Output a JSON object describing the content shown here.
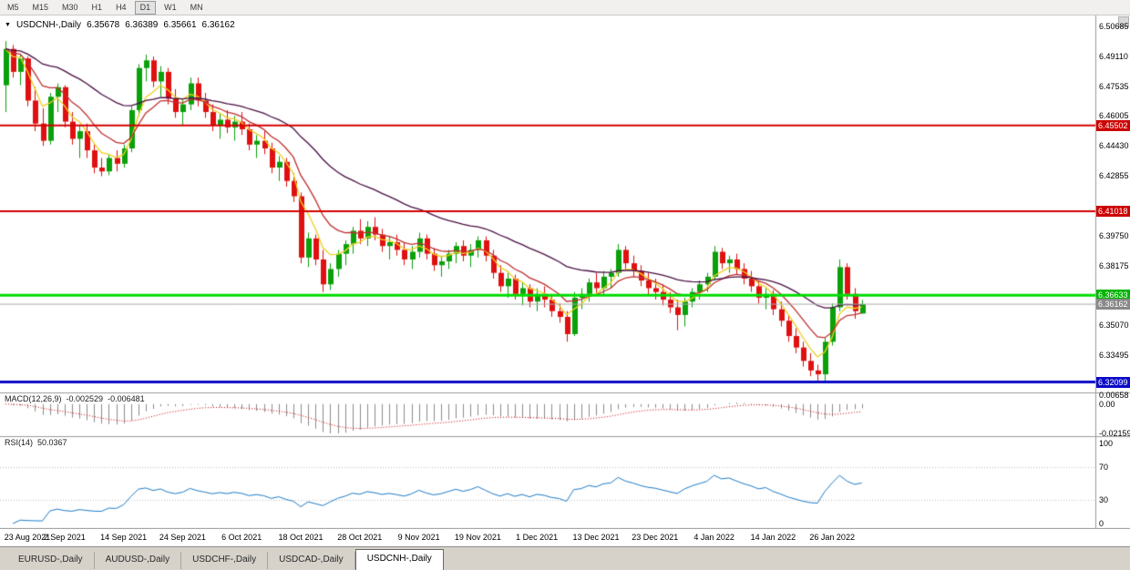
{
  "toolbar": {
    "timeframes": [
      {
        "label": "M5",
        "active": false
      },
      {
        "label": "M15",
        "active": false
      },
      {
        "label": "M30",
        "active": false
      },
      {
        "label": "H1",
        "active": false
      },
      {
        "label": "H4",
        "active": false
      },
      {
        "label": "D1",
        "active": true
      },
      {
        "label": "W1",
        "active": false
      },
      {
        "label": "MN",
        "active": false
      }
    ]
  },
  "chart": {
    "header": {
      "dropdown_icon": "▼",
      "symbol": "USDCNH-,Daily",
      "open": "6.35678",
      "high": "6.36389",
      "low": "6.35661",
      "close": "6.36162"
    },
    "price_axis": {
      "labels": [
        "6.50685",
        "6.49110",
        "6.47535",
        "6.46005",
        "6.44430",
        "6.42855",
        "6.39750",
        "6.38175",
        "6.35070",
        "6.33495"
      ]
    }
  },
  "chart_data": {
    "type": "candlestick",
    "symbol": "USDCNH",
    "timeframe": "Daily",
    "price_range": {
      "min": 6.316,
      "max": 6.5115
    },
    "x_ticks": [
      {
        "index": 0,
        "label": "23 Aug 2021"
      },
      {
        "index": 8,
        "label": "2 Sep 2021"
      },
      {
        "index": 16,
        "label": "14 Sep 2021"
      },
      {
        "index": 24,
        "label": "24 Sep 2021"
      },
      {
        "index": 32,
        "label": "6 Oct 2021"
      },
      {
        "index": 40,
        "label": "18 Oct 2021"
      },
      {
        "index": 48,
        "label": "28 Oct 2021"
      },
      {
        "index": 56,
        "label": "9 Nov 2021"
      },
      {
        "index": 64,
        "label": "19 Nov 2021"
      },
      {
        "index": 72,
        "label": "1 Dec 2021"
      },
      {
        "index": 80,
        "label": "13 Dec 2021"
      },
      {
        "index": 88,
        "label": "23 Dec 2021"
      },
      {
        "index": 96,
        "label": "4 Jan 2022"
      },
      {
        "index": 104,
        "label": "14 Jan 2022"
      },
      {
        "index": 112,
        "label": "26 Jan 2022"
      }
    ],
    "candles": [
      [
        6.476,
        6.499,
        6.462,
        6.495
      ],
      [
        6.495,
        6.497,
        6.48,
        6.483
      ],
      [
        6.483,
        6.492,
        6.476,
        6.49
      ],
      [
        6.49,
        6.491,
        6.465,
        6.468
      ],
      [
        6.468,
        6.475,
        6.452,
        6.456
      ],
      [
        6.456,
        6.464,
        6.4443,
        6.447
      ],
      [
        6.447,
        6.472,
        6.445,
        6.47
      ],
      [
        6.47,
        6.477,
        6.462,
        6.475
      ],
      [
        6.475,
        6.476,
        6.454,
        6.457
      ],
      [
        6.457,
        6.462,
        6.445,
        6.448
      ],
      [
        6.448,
        6.455,
        6.438,
        6.452
      ],
      [
        6.452,
        6.456,
        6.438,
        6.442
      ],
      [
        6.442,
        6.445,
        6.43,
        6.433
      ],
      [
        6.433,
        6.438,
        6.4285,
        6.431
      ],
      [
        6.431,
        6.44,
        6.429,
        6.438
      ],
      [
        6.438,
        6.442,
        6.431,
        6.435
      ],
      [
        6.435,
        6.445,
        6.433,
        6.443
      ],
      [
        6.443,
        6.465,
        6.441,
        6.463
      ],
      [
        6.463,
        6.487,
        6.46,
        6.485
      ],
      [
        6.485,
        6.492,
        6.478,
        6.489
      ],
      [
        6.489,
        6.491,
        6.475,
        6.478
      ],
      [
        6.478,
        6.486,
        6.47,
        6.483
      ],
      [
        6.483,
        6.485,
        6.466,
        6.469
      ],
      [
        6.469,
        6.474,
        6.459,
        6.462
      ],
      [
        6.462,
        6.469,
        6.455,
        6.466
      ],
      [
        6.466,
        6.48,
        6.463,
        6.477
      ],
      [
        6.477,
        6.48,
        6.465,
        6.468
      ],
      [
        6.468,
        6.472,
        6.459,
        6.462
      ],
      [
        6.462,
        6.466,
        6.452,
        6.455
      ],
      [
        6.455,
        6.461,
        6.448,
        6.458
      ],
      [
        6.458,
        6.463,
        6.451,
        6.454
      ],
      [
        6.454,
        6.46,
        6.447,
        6.457
      ],
      [
        6.457,
        6.462,
        6.45,
        6.453
      ],
      [
        6.453,
        6.456,
        6.442,
        6.445
      ],
      [
        6.445,
        6.45,
        6.438,
        6.447
      ],
      [
        6.447,
        6.452,
        6.44,
        6.443
      ],
      [
        6.443,
        6.446,
        6.43,
        6.433
      ],
      [
        6.433,
        6.439,
        6.426,
        6.436
      ],
      [
        6.436,
        6.438,
        6.423,
        6.426
      ],
      [
        6.426,
        6.43,
        6.415,
        6.418
      ],
      [
        6.418,
        6.42,
        6.383,
        6.386
      ],
      [
        6.386,
        6.399,
        6.381,
        6.396
      ],
      [
        6.396,
        6.398,
        6.382,
        6.385
      ],
      [
        6.385,
        6.39,
        6.368,
        6.372
      ],
      [
        6.372,
        6.383,
        6.369,
        6.38
      ],
      [
        6.38,
        6.39,
        6.376,
        6.388
      ],
      [
        6.388,
        6.395,
        6.382,
        6.393
      ],
      [
        6.393,
        6.402,
        6.388,
        6.4
      ],
      [
        6.4,
        6.406,
        6.393,
        6.396
      ],
      [
        6.396,
        6.405,
        6.392,
        6.402
      ],
      [
        6.402,
        6.407,
        6.395,
        6.398
      ],
      [
        6.398,
        6.401,
        6.389,
        6.392
      ],
      [
        6.392,
        6.397,
        6.385,
        6.394
      ],
      [
        6.394,
        6.398,
        6.387,
        6.39
      ],
      [
        6.39,
        6.394,
        6.382,
        6.385
      ],
      [
        6.385,
        6.392,
        6.38,
        6.389
      ],
      [
        6.389,
        6.399,
        6.386,
        6.396
      ],
      [
        6.396,
        6.398,
        6.385,
        6.388
      ],
      [
        6.388,
        6.391,
        6.379,
        6.382
      ],
      [
        6.382,
        6.387,
        6.376,
        6.384
      ],
      [
        6.384,
        6.39,
        6.38,
        6.388
      ],
      [
        6.388,
        6.394,
        6.383,
        6.392
      ],
      [
        6.392,
        6.395,
        6.384,
        6.387
      ],
      [
        6.387,
        6.393,
        6.381,
        6.39
      ],
      [
        6.39,
        6.397,
        6.386,
        6.395
      ],
      [
        6.395,
        6.397,
        6.384,
        6.387
      ],
      [
        6.387,
        6.39,
        6.375,
        6.378
      ],
      [
        6.378,
        6.382,
        6.368,
        6.371
      ],
      [
        6.371,
        6.378,
        6.365,
        6.375
      ],
      [
        6.375,
        6.377,
        6.364,
        6.367
      ],
      [
        6.367,
        6.373,
        6.361,
        6.37
      ],
      [
        6.37,
        6.372,
        6.36,
        6.363
      ],
      [
        6.363,
        6.37,
        6.358,
        6.367
      ],
      [
        6.367,
        6.371,
        6.36,
        6.364
      ],
      [
        6.364,
        6.367,
        6.355,
        6.358
      ],
      [
        6.358,
        6.362,
        6.352,
        6.355
      ],
      [
        6.355,
        6.358,
        6.342,
        6.346
      ],
      [
        6.346,
        6.368,
        6.345,
        6.365
      ],
      [
        6.365,
        6.37,
        6.359,
        6.367
      ],
      [
        6.367,
        6.375,
        6.363,
        6.373
      ],
      [
        6.373,
        6.378,
        6.367,
        6.37
      ],
      [
        6.37,
        6.379,
        6.366,
        6.376
      ],
      [
        6.376,
        6.38,
        6.37,
        6.378
      ],
      [
        6.378,
        6.393,
        6.376,
        6.39
      ],
      [
        6.39,
        6.392,
        6.38,
        6.383
      ],
      [
        6.383,
        6.387,
        6.376,
        6.379
      ],
      [
        6.379,
        6.382,
        6.371,
        6.374
      ],
      [
        6.374,
        6.378,
        6.366,
        6.37
      ],
      [
        6.37,
        6.375,
        6.364,
        6.368
      ],
      [
        6.368,
        6.372,
        6.361,
        6.364
      ],
      [
        6.364,
        6.368,
        6.357,
        6.36
      ],
      [
        6.36,
        6.364,
        6.348,
        6.356
      ],
      [
        6.356,
        6.365,
        6.35,
        6.363
      ],
      [
        6.363,
        6.37,
        6.36,
        6.368
      ],
      [
        6.368,
        6.374,
        6.364,
        6.372
      ],
      [
        6.372,
        6.378,
        6.368,
        6.376
      ],
      [
        6.376,
        6.392,
        6.374,
        6.389
      ],
      [
        6.389,
        6.391,
        6.38,
        6.383
      ],
      [
        6.383,
        6.387,
        6.378,
        6.385
      ],
      [
        6.385,
        6.388,
        6.377,
        6.38
      ],
      [
        6.38,
        6.383,
        6.372,
        6.375
      ],
      [
        6.375,
        6.379,
        6.368,
        6.371
      ],
      [
        6.371,
        6.374,
        6.362,
        6.365
      ],
      [
        6.365,
        6.37,
        6.359,
        6.367
      ],
      [
        6.367,
        6.369,
        6.356,
        6.359
      ],
      [
        6.359,
        6.363,
        6.35,
        6.353
      ],
      [
        6.353,
        6.356,
        6.342,
        6.345
      ],
      [
        6.345,
        6.349,
        6.336,
        6.339
      ],
      [
        6.339,
        6.342,
        6.329,
        6.332
      ],
      [
        6.332,
        6.336,
        6.324,
        6.327
      ],
      [
        6.327,
        6.33,
        6.321,
        6.325
      ],
      [
        6.325,
        6.344,
        6.3215,
        6.342
      ],
      [
        6.342,
        6.362,
        6.34,
        6.36
      ],
      [
        6.36,
        6.385,
        6.358,
        6.381
      ],
      [
        6.381,
        6.383,
        6.364,
        6.367
      ],
      [
        6.367,
        6.37,
        6.354,
        6.358
      ],
      [
        6.35678,
        6.36389,
        6.35661,
        6.36162
      ]
    ],
    "moving_averages": [
      {
        "period": 5,
        "color": "#efd020",
        "name": "ma-fast-yellow"
      },
      {
        "period": 10,
        "color": "#c03030",
        "name": "ma-mid-red"
      },
      {
        "period": 30,
        "color": "#4a1045",
        "name": "ma-slow-purple"
      }
    ],
    "levels": [
      {
        "price": 6.45502,
        "text": "6.45502",
        "line_color": "#d40000",
        "line_width": 2,
        "badge_color": "#cc0000",
        "name": "resistance-line-upper"
      },
      {
        "price": 6.41018,
        "text": "6.41018",
        "line_color": "#d40000",
        "line_width": 2,
        "badge_color": "#cc0000",
        "name": "resistance-line-lower"
      },
      {
        "price": 6.36633,
        "text": "6.36633",
        "line_color": "#00dc00",
        "line_width": 3,
        "badge_color": "#00b400",
        "name": "support-line-green"
      },
      {
        "price": 6.36162,
        "text": "6.36162",
        "line_color": "#aaaaaa",
        "line_width": 1,
        "badge_color": "#888888",
        "name": "current-price-line"
      },
      {
        "price": 6.32099,
        "text": "6.32099",
        "line_color": "#0a0ac8",
        "line_width": 3,
        "badge_color": "#0a0ac8",
        "name": "support-line-blue"
      }
    ],
    "indicators": {
      "macd": {
        "label": "MACD(12,26,9)",
        "value_main": "-0.002529",
        "value_signal": "-0.006481",
        "fast": 12,
        "slow": 26,
        "signal": 9,
        "scale_max": 0.00658,
        "scale_min": -0.02159,
        "axis_labels": [
          "0.00658",
          "0.00",
          "-0.02159"
        ]
      },
      "rsi": {
        "label": "RSI(14)",
        "value": "50.0367",
        "period": 14,
        "axis_labels": [
          "100",
          "70",
          "30",
          "0"
        ],
        "levels": [
          70,
          30
        ]
      }
    }
  },
  "tabs": [
    {
      "label": "EURUSD-,Daily",
      "active": false
    },
    {
      "label": "AUDUSD-,Daily",
      "active": false
    },
    {
      "label": "USDCHF-,Daily",
      "active": false
    },
    {
      "label": "USDCAD-,Daily",
      "active": false
    },
    {
      "label": "USDCNH-,Daily",
      "active": true
    }
  ],
  "colors": {
    "bull": "#0aa00a",
    "bear": "#e01010",
    "panel_border": "#9a9a9a",
    "macd_hist": "#8c8c8c",
    "macd_signal": "#cc0000",
    "rsi_line": "#1e7cc8",
    "rsi_levels": "#c0c0c0",
    "axis_text": "#000000"
  }
}
